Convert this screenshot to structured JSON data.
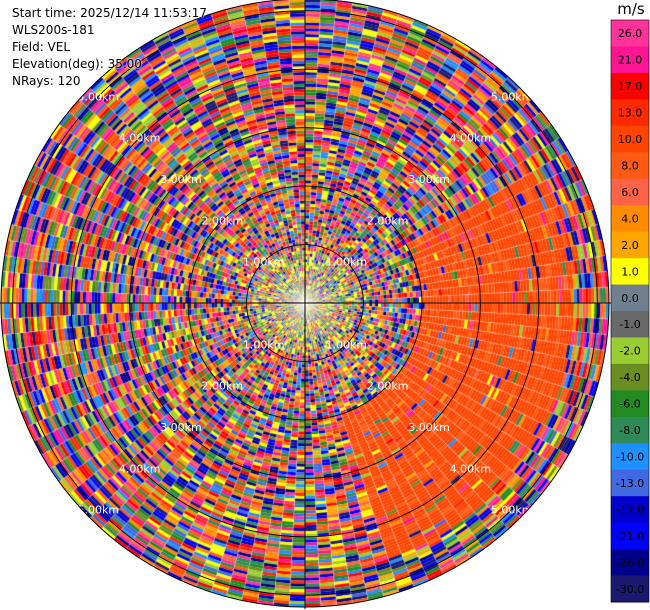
{
  "header": {
    "start_time": "Start time: 2025/12/14 11:53:17",
    "instrument": "WLS200s-181",
    "field": "Field: VEL",
    "elevation": "Elevation(deg): 35.00",
    "nrays": "NRays: 120"
  },
  "colorbar": {
    "unit": "m/s",
    "ticks": [
      "26.0",
      "21.0",
      "17.0",
      "13.0",
      "10.0",
      "8.0",
      "6.0",
      "4.0",
      "2.0",
      "1.0",
      "0.0",
      "-1.0",
      "-2.0",
      "-4.0",
      "-6.0",
      "-8.0",
      "-10.0",
      "-13.0",
      "-17.0",
      "-21.0",
      "-26.0",
      "-30.0"
    ],
    "colors": [
      "#ff3399",
      "#ff1493",
      "#ff0000",
      "#ff2a00",
      "#ff4500",
      "#ff5a14",
      "#ff6347",
      "#ff8c00",
      "#ffa500",
      "#ffff00",
      "#708090",
      "#696969",
      "#9acd32",
      "#6b8e23",
      "#228b22",
      "#2e8b57",
      "#1e90ff",
      "#4169e1",
      "#0000cd",
      "#0000ff",
      "#00008b",
      "#191970"
    ]
  },
  "chart_data": {
    "type": "heatmap",
    "title": "",
    "field": "VEL",
    "units": "m/s",
    "elevation_deg": 35.0,
    "n_rays": 120,
    "range_ring_labels": [
      "1.00km",
      "2.00km",
      "3.00km",
      "4.00km",
      "5.00km"
    ],
    "range_rings_km": [
      1,
      2,
      3,
      4,
      5
    ],
    "max_range_km": 5.2,
    "value_range": [
      -30,
      26
    ],
    "coherent_region": {
      "azimuth_start_deg": 60,
      "azimuth_end_deg": 160,
      "range_start_km": 2.0,
      "range_end_km": 4.6,
      "value": 10.5
    }
  }
}
